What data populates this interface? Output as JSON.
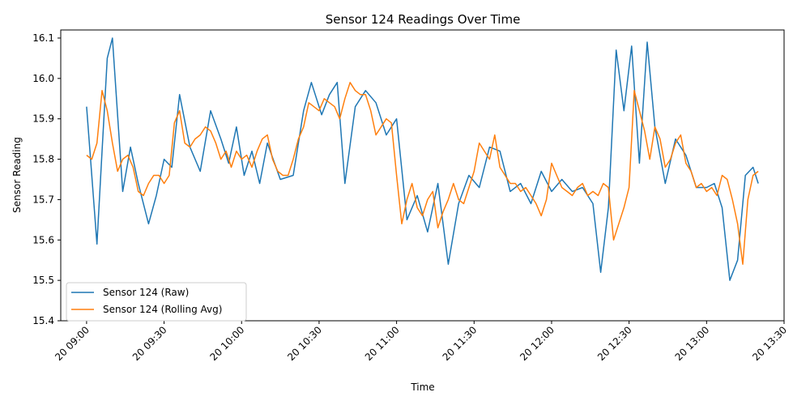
{
  "chart_data": {
    "type": "line",
    "title": "Sensor 124 Readings Over Time",
    "xlabel": "Time",
    "ylabel": "Sensor Reading",
    "x_range": [
      "20 08:50",
      "20 13:30"
    ],
    "x_ticks": [
      "20 09:00",
      "20 09:30",
      "20 10:00",
      "20 10:30",
      "20 11:00",
      "20 11:30",
      "20 12:00",
      "20 12:30",
      "20 13:00",
      "20 13:30"
    ],
    "ylim": [
      15.4,
      16.12
    ],
    "y_ticks": [
      "15.4",
      "15.5",
      "15.6",
      "15.7",
      "15.8",
      "15.9",
      "16.0",
      "16.1"
    ],
    "grid": false,
    "legend_position": "lower-left",
    "series": [
      {
        "name": "Sensor 124 (Raw)",
        "color": "#1f77b4",
        "x": [
          "09:00",
          "09:04",
          "09:06",
          "09:08",
          "09:10",
          "09:14",
          "09:17",
          "09:20",
          "09:24",
          "09:27",
          "09:30",
          "09:33",
          "09:36",
          "09:40",
          "09:44",
          "09:48",
          "09:52",
          "09:55",
          "09:58",
          "10:01",
          "10:04",
          "10:07",
          "10:10",
          "10:15",
          "10:20",
          "10:24",
          "10:27",
          "10:31",
          "10:34",
          "10:37",
          "10:40",
          "10:44",
          "10:48",
          "10:52",
          "10:56",
          "11:00",
          "11:04",
          "11:08",
          "11:12",
          "11:16",
          "11:20",
          "11:24",
          "11:28",
          "11:32",
          "11:36",
          "11:40",
          "11:44",
          "11:48",
          "11:52",
          "11:56",
          "12:00",
          "12:04",
          "12:08",
          "12:12",
          "12:16",
          "12:19",
          "12:22",
          "12:25",
          "12:28",
          "12:31",
          "12:34",
          "12:37",
          "12:40",
          "12:44",
          "12:48",
          "12:52",
          "12:56",
          "13:00",
          "13:03",
          "13:06",
          "13:09",
          "13:12",
          "13:15",
          "13:18",
          "13:20"
        ],
        "values": [
          15.93,
          15.59,
          15.82,
          16.05,
          16.1,
          15.72,
          15.83,
          15.74,
          15.64,
          15.71,
          15.8,
          15.78,
          15.96,
          15.83,
          15.77,
          15.92,
          15.85,
          15.79,
          15.88,
          15.76,
          15.82,
          15.74,
          15.84,
          15.75,
          15.76,
          15.92,
          15.99,
          15.91,
          15.96,
          15.99,
          15.74,
          15.93,
          15.97,
          15.94,
          15.86,
          15.9,
          15.65,
          15.71,
          15.62,
          15.74,
          15.54,
          15.69,
          15.76,
          15.73,
          15.83,
          15.82,
          15.72,
          15.74,
          15.69,
          15.77,
          15.72,
          15.75,
          15.72,
          15.73,
          15.69,
          15.52,
          15.68,
          16.07,
          15.92,
          16.08,
          15.79,
          16.09,
          15.88,
          15.74,
          15.85,
          15.81,
          15.73,
          15.73,
          15.74,
          15.68,
          15.5,
          15.55,
          15.76,
          15.78,
          15.74
        ]
      },
      {
        "name": "Sensor 124 (Rolling Avg)",
        "color": "#ff7f0e",
        "x": [
          "09:00",
          "09:02",
          "09:04",
          "09:06",
          "09:08",
          "09:10",
          "09:12",
          "09:14",
          "09:16",
          "09:18",
          "09:20",
          "09:22",
          "09:24",
          "09:26",
          "09:28",
          "09:30",
          "09:32",
          "09:34",
          "09:36",
          "09:38",
          "09:40",
          "09:42",
          "09:44",
          "09:46",
          "09:48",
          "09:50",
          "09:52",
          "09:54",
          "09:56",
          "09:58",
          "10:00",
          "10:02",
          "10:04",
          "10:06",
          "10:08",
          "10:10",
          "10:12",
          "10:14",
          "10:16",
          "10:18",
          "10:20",
          "10:22",
          "10:24",
          "10:26",
          "10:28",
          "10:30",
          "10:32",
          "10:34",
          "10:36",
          "10:38",
          "10:40",
          "10:42",
          "10:44",
          "10:46",
          "10:48",
          "10:50",
          "10:52",
          "10:54",
          "10:56",
          "10:58",
          "11:00",
          "11:02",
          "11:04",
          "11:06",
          "11:08",
          "11:10",
          "11:12",
          "11:14",
          "11:16",
          "11:18",
          "11:20",
          "11:22",
          "11:24",
          "11:26",
          "11:28",
          "11:30",
          "11:32",
          "11:34",
          "11:36",
          "11:38",
          "11:40",
          "11:42",
          "11:44",
          "11:46",
          "11:48",
          "11:50",
          "11:52",
          "11:54",
          "11:56",
          "11:58",
          "12:00",
          "12:02",
          "12:04",
          "12:06",
          "12:08",
          "12:10",
          "12:12",
          "12:14",
          "12:16",
          "12:18",
          "12:20",
          "12:22",
          "12:24",
          "12:26",
          "12:28",
          "12:30",
          "12:32",
          "12:34",
          "12:36",
          "12:38",
          "12:40",
          "12:42",
          "12:44",
          "12:46",
          "12:48",
          "12:50",
          "12:52",
          "12:54",
          "12:56",
          "12:58",
          "13:00",
          "13:02",
          "13:04",
          "13:06",
          "13:08",
          "13:10",
          "13:12",
          "13:14",
          "13:16",
          "13:18",
          "13:20"
        ],
        "values": [
          15.81,
          15.8,
          15.84,
          15.97,
          15.92,
          15.84,
          15.77,
          15.8,
          15.81,
          15.78,
          15.72,
          15.71,
          15.74,
          15.76,
          15.76,
          15.74,
          15.76,
          15.89,
          15.92,
          15.84,
          15.83,
          15.85,
          15.86,
          15.88,
          15.87,
          15.84,
          15.8,
          15.82,
          15.78,
          15.82,
          15.8,
          15.81,
          15.78,
          15.82,
          15.85,
          15.86,
          15.8,
          15.77,
          15.76,
          15.76,
          15.8,
          15.85,
          15.88,
          15.94,
          15.93,
          15.92,
          15.95,
          15.94,
          15.93,
          15.9,
          15.95,
          15.99,
          15.97,
          15.96,
          15.96,
          15.92,
          15.86,
          15.88,
          15.9,
          15.89,
          15.76,
          15.64,
          15.7,
          15.74,
          15.68,
          15.66,
          15.7,
          15.72,
          15.63,
          15.67,
          15.7,
          15.74,
          15.7,
          15.69,
          15.73,
          15.77,
          15.84,
          15.82,
          15.8,
          15.86,
          15.78,
          15.76,
          15.74,
          15.74,
          15.72,
          15.73,
          15.71,
          15.69,
          15.66,
          15.7,
          15.79,
          15.76,
          15.73,
          15.72,
          15.71,
          15.73,
          15.74,
          15.71,
          15.72,
          15.71,
          15.74,
          15.73,
          15.6,
          15.64,
          15.68,
          15.73,
          15.97,
          15.92,
          15.87,
          15.8,
          15.88,
          15.85,
          15.78,
          15.8,
          15.84,
          15.86,
          15.79,
          15.77,
          15.73,
          15.74,
          15.72,
          15.73,
          15.71,
          15.76,
          15.75,
          15.7,
          15.64,
          15.54,
          15.7,
          15.76,
          15.77
        ]
      }
    ]
  }
}
